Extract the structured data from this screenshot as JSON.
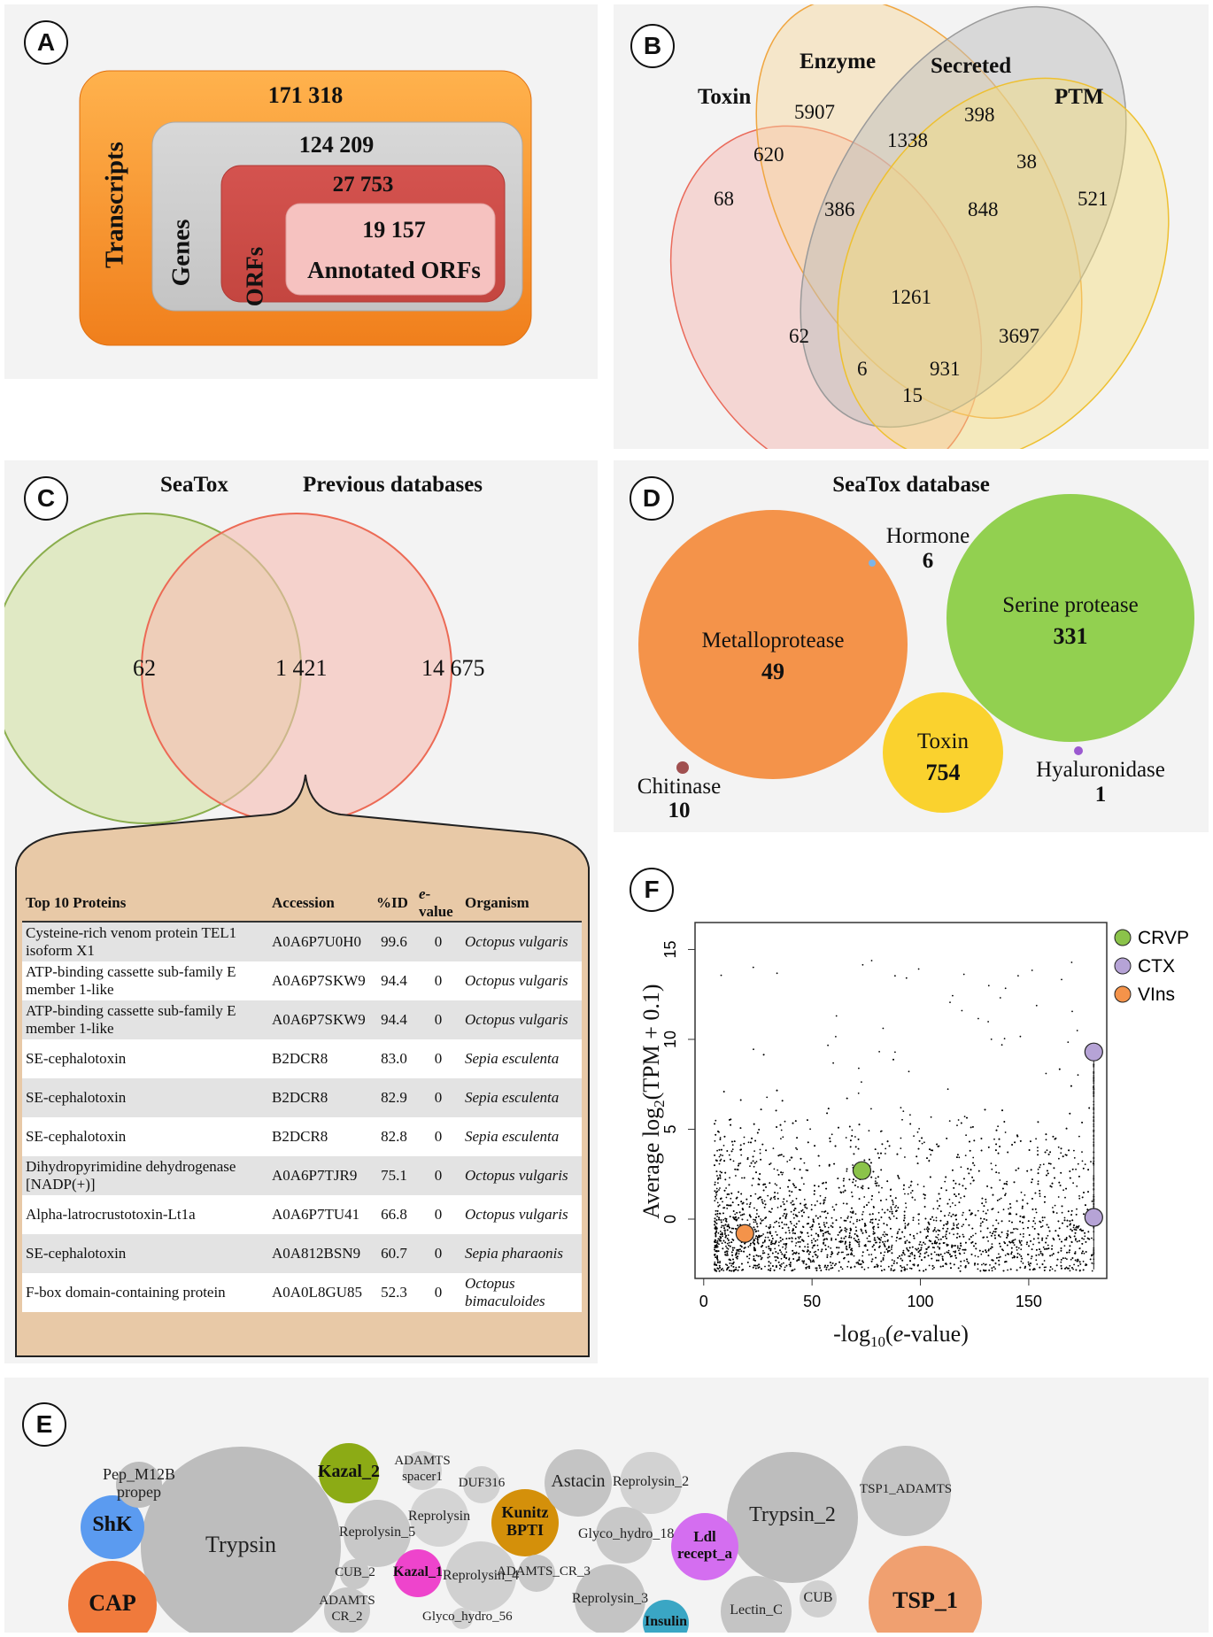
{
  "panel_a": {
    "label": "A",
    "transcripts": {
      "label": "Transcripts",
      "value": "171 318"
    },
    "genes": {
      "label": "Genes",
      "value": "124 209"
    },
    "orfs": {
      "label": "ORFs",
      "value": "27 753"
    },
    "annotated": {
      "label": "Annotated ORFs",
      "value": "19 157"
    }
  },
  "panel_b": {
    "label": "B",
    "sets": {
      "toxin": "Toxin",
      "enzyme": "Enzyme",
      "secreted": "Secreted",
      "ptm": "PTM"
    },
    "regions": {
      "toxin_only": "68",
      "enzyme_only": "5907",
      "secreted_only": "398",
      "ptm_only": "521",
      "toxin_enzyme": "620",
      "enzyme_secreted": "1338",
      "secreted_ptm": "38",
      "toxin_enzyme_secreted": "386",
      "enzyme_secreted_ptm": "848",
      "all_four": "1261",
      "toxin_secreted": "62",
      "enzyme_ptm": "3697",
      "toxin_secreted_ptm": "6",
      "toxin_enzyme_ptm": "931",
      "toxin_ptm": "15"
    },
    "colors": {
      "toxin": "#f28b82",
      "enzyme": "#f5c16c",
      "secreted": "#b0b0b0",
      "ptm": "#f3d35c"
    }
  },
  "panel_c": {
    "label": "C",
    "left_title": "SeaTox",
    "right_title": "Previous databases",
    "left_only": "62",
    "overlap": "1 421",
    "right_only": "14 675",
    "table": {
      "headers": {
        "protein": "Top 10 Proteins",
        "accession": "Accession",
        "pid": "%ID",
        "evalue_it": "e",
        "evalue_rest": "-value",
        "organism": "Organism"
      },
      "rows": [
        {
          "protein": "Cysteine-rich venom protein TEL1 isoform X1",
          "accession": "A0A6P7U0H0",
          "pid": "99.6",
          "evalue": "0",
          "organism": "Octopus vulgaris"
        },
        {
          "protein": "ATP-binding cassette sub-family E member 1-like",
          "accession": "A0A6P7SKW9",
          "pid": "94.4",
          "evalue": "0",
          "organism": "Octopus vulgaris"
        },
        {
          "protein": "ATP-binding cassette sub-family E member 1-like",
          "accession": "A0A6P7SKW9",
          "pid": "94.4",
          "evalue": "0",
          "organism": "Octopus vulgaris"
        },
        {
          "protein": "SE-cephalotoxin",
          "accession": "B2DCR8",
          "pid": "83.0",
          "evalue": "0",
          "organism": "Sepia esculenta"
        },
        {
          "protein": "SE-cephalotoxin",
          "accession": "B2DCR8",
          "pid": "82.9",
          "evalue": "0",
          "organism": "Sepia esculenta"
        },
        {
          "protein": "SE-cephalotoxin",
          "accession": "B2DCR8",
          "pid": "82.8",
          "evalue": "0",
          "organism": "Sepia esculenta"
        },
        {
          "protein": "Dihydropyrimidine dehydrogenase [NADP(+)]",
          "accession": "A0A6P7TJR9",
          "pid": "75.1",
          "evalue": "0",
          "organism": "Octopus vulgaris"
        },
        {
          "protein": "Alpha-latrocrustotoxin-Lt1a",
          "accession": "A0A6P7TU41",
          "pid": "66.8",
          "evalue": "0",
          "organism": "Octopus vulgaris"
        },
        {
          "protein": "SE-cephalotoxin",
          "accession": "A0A812BSN9",
          "pid": "60.7",
          "evalue": "0",
          "organism": "Sepia pharaonis"
        },
        {
          "protein": "F-box domain-containing protein",
          "accession": "A0A0L8GU85",
          "pid": "52.3",
          "evalue": "0",
          "organism": "Octopus bimaculoides"
        }
      ]
    }
  },
  "panel_d": {
    "label": "D",
    "title": "SeaTox database",
    "bubbles": [
      {
        "name": "Metalloprotease",
        "value": "49",
        "color": "#f4934a"
      },
      {
        "name": "Serine protease",
        "value": "331",
        "color": "#92d050"
      },
      {
        "name": "Toxin",
        "value": "754",
        "color": "#fad22e"
      },
      {
        "name": "Hormone",
        "value": "6",
        "color": "#7cb5e8"
      },
      {
        "name": "Chitinase",
        "value": "10",
        "color": "#a05050"
      },
      {
        "name": "Hyaluronidase",
        "value": "1",
        "color": "#9b59d0"
      }
    ]
  },
  "panel_e": {
    "label": "E",
    "bubbles": [
      {
        "name": "Pep_M12B propep",
        "color": "#bdbdbd"
      },
      {
        "name": "ShK",
        "color": "#5b9bf0"
      },
      {
        "name": "CAP",
        "color": "#f07a3c"
      },
      {
        "name": "Trypsin",
        "color": "#bdbdbd"
      },
      {
        "name": "Kazal_2",
        "color": "#8cab15"
      },
      {
        "name": "Reprolysin_5",
        "color": "#c8c8c8"
      },
      {
        "name": "CUB_2",
        "color": "#c8c8c8"
      },
      {
        "name": "ADAMTS CR_2",
        "color": "#c8c8c8"
      },
      {
        "name": "ADAMTS spacer1",
        "color": "#d2d2d2"
      },
      {
        "name": "Reprolysin",
        "color": "#d4d4d4"
      },
      {
        "name": "DUF316",
        "color": "#d2d2d2"
      },
      {
        "name": "Kazal_1",
        "color": "#ee44cc"
      },
      {
        "name": "Reprolysin_4",
        "color": "#d0d0d0"
      },
      {
        "name": "Glyco_hydro_56",
        "color": "#d2d2d2"
      },
      {
        "name": "Kunitz BPTI",
        "color": "#d4900a"
      },
      {
        "name": "ADAMTS_CR_3",
        "color": "#c8c8c8"
      },
      {
        "name": "Astacin",
        "color": "#c4c4c4"
      },
      {
        "name": "Reprolysin_2",
        "color": "#d2d2d2"
      },
      {
        "name": "Glyco_hydro_18",
        "color": "#c8c8c8"
      },
      {
        "name": "Reprolysin_3",
        "color": "#c4c4c4"
      },
      {
        "name": "Insulin",
        "color": "#3aa6c4"
      },
      {
        "name": "Ldl recept_a",
        "color": "#d46ef0"
      },
      {
        "name": "Trypsin_2",
        "color": "#bdbdbd"
      },
      {
        "name": "Lectin_C",
        "color": "#c4c4c4"
      },
      {
        "name": "CUB",
        "color": "#d0d0d0"
      },
      {
        "name": "TSP1_ADAMTS",
        "color": "#c4c4c4"
      },
      {
        "name": "TSP_1",
        "color": "#f0a070"
      }
    ]
  },
  "panel_f": {
    "label": "F",
    "legend": [
      {
        "name": "CRVP",
        "color": "#8bc34a"
      },
      {
        "name": "CTX",
        "color": "#b6a3d6"
      },
      {
        "name": "VIns",
        "color": "#f4934a"
      }
    ]
  },
  "chart_data": {
    "type": "scatter",
    "title": "",
    "xlabel": "-log10(e-value)",
    "ylabel": "Average log2(TPM + 0.1)",
    "xlim": [
      0,
      185
    ],
    "ylim": [
      -3.3,
      16.5
    ],
    "xticks": [
      "0",
      "50",
      "100",
      "150"
    ],
    "xtick_values": [
      0,
      50,
      100,
      150
    ],
    "yticks": [
      "0",
      "5",
      "10",
      "15"
    ],
    "ytick_values": [
      0,
      5,
      10,
      15
    ],
    "background_points_note": "thousands of small black points, densest near y=-2 to 0 across x=5-180",
    "highlight_series": [
      {
        "name": "CRVP",
        "x": [
          73
        ],
        "y": [
          2.7
        ]
      },
      {
        "name": "CTX",
        "x": [
          180,
          180
        ],
        "y": [
          9.3,
          0.1
        ]
      },
      {
        "name": "VIns",
        "x": [
          19
        ],
        "y": [
          -0.8
        ]
      }
    ]
  }
}
